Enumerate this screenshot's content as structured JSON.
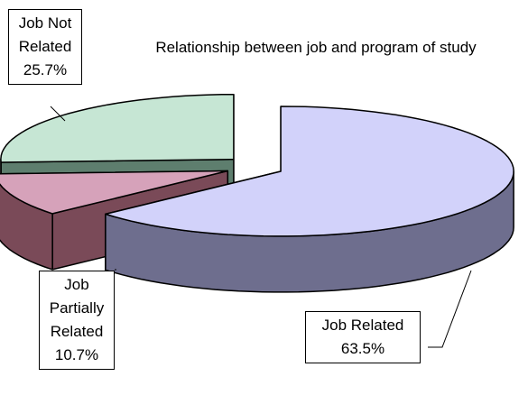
{
  "chart_data": {
    "type": "pie",
    "title": "Relationship between job and program of study",
    "categories": [
      "Job Related",
      "Job Partially Related",
      "Job Not Related"
    ],
    "values": [
      63.5,
      10.7,
      25.7
    ],
    "value_labels": [
      "63.5%",
      "10.7%",
      "25.7%"
    ],
    "colors": [
      "#d2d2fa",
      "#d6a2ba",
      "#c6e6d4"
    ],
    "side_colors": [
      "#6e6e8e",
      "#7a4a58",
      "#5e7e6e"
    ],
    "exploded": true,
    "three_d": true
  }
}
